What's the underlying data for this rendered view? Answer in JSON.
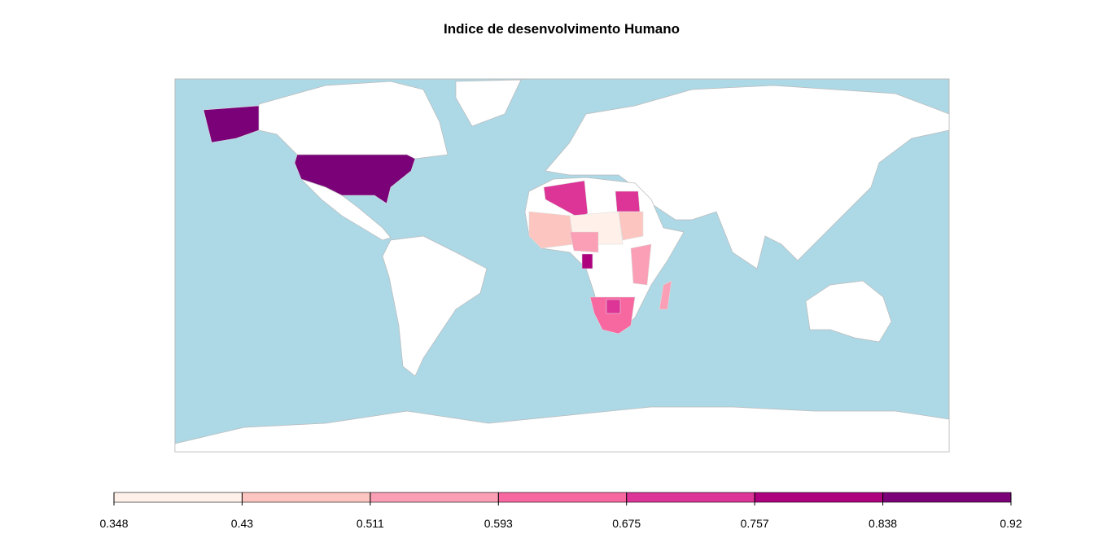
{
  "title": "Indice de desenvolvimento Humano",
  "legend": {
    "breaks": [
      0.348,
      0.43,
      0.511,
      0.593,
      0.675,
      0.757,
      0.838,
      0.92
    ],
    "colors": [
      "#fff0ea",
      "#fcc5c0",
      "#fa9fb5",
      "#f768a1",
      "#dd3497",
      "#ae017e",
      "#7a0177"
    ]
  }
}
